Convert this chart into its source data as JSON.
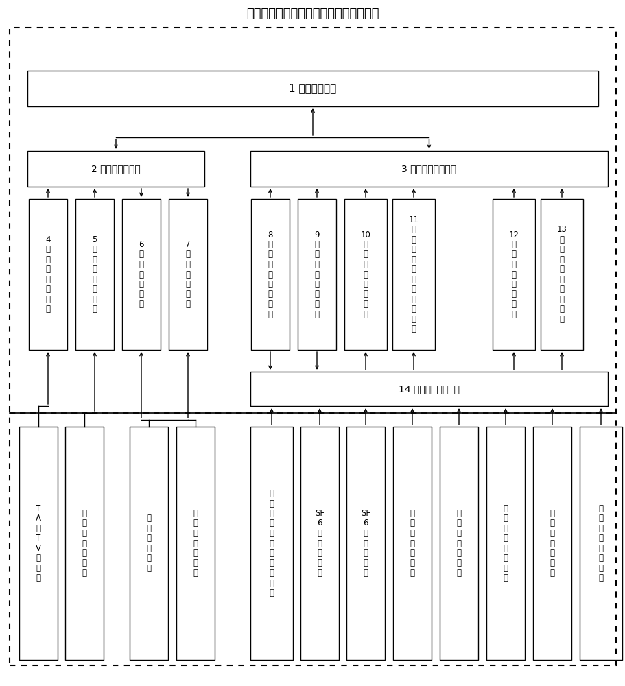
{
  "title": "具备设备状态监测功能的配电自动化终端",
  "bg_color": "#ffffff",
  "box1_label": "1 外部通信接口",
  "box2_label": "2 测量与控制模块",
  "box3_label": "3 设备状态诊断模块",
  "box14_label": "14 现场数据总线接口",
  "sub_labels": [
    "4\n模\n拟\n量\n采\n集\n模\n块",
    "5\n开\n关\n量\n采\n集\n模\n块",
    "6\n开\n关\n控\n制\n回\n路",
    "7\n开\n关\n储\n能\n回\n路",
    "8\n开\n关\n特\n性\n监\n测\n模\n块",
    "9\n电\n源\n状\n态\n监\n测\n模\n块",
    "10\n绝\n缘\n特\n性\n监\n测\n模\n块",
    "11\n设\n备\n振\n动\n与\n声\n音\n监\n测\n模\n块",
    "12\n设\n备\n温\n度\n监\n测\n模\n块",
    "13\n环\n境\n温\n湿\n度\n监\n测\n模\n块"
  ],
  "sensor_labels": [
    "T\nA\n及\nT\nV\n传\n感\n器",
    "开\n关\n位\n置\n继\n电\n器",
    "开\n关\n操\n动\n机\n构",
    "蓄\n电\n池\n后\n备\n电\n源",
    "电\n缆\n接\n头\n泄\n漏\n电\n流\n传\n感\n器",
    "SF\n6\n压\n力\n传\n感\n器",
    "SF\n6\n微\n水\n传\n感\n器",
    "设\n备\n振\n动\n传\n感\n器",
    "设\n备\n声\n音\n传\n感\n器",
    "电\n缆\n头\n温\n度\n传\n感\n器",
    "设\n备\n温\n度\n传\n感\n器",
    "环\n境\n温\n湿\n度\n传\n感\n器"
  ]
}
